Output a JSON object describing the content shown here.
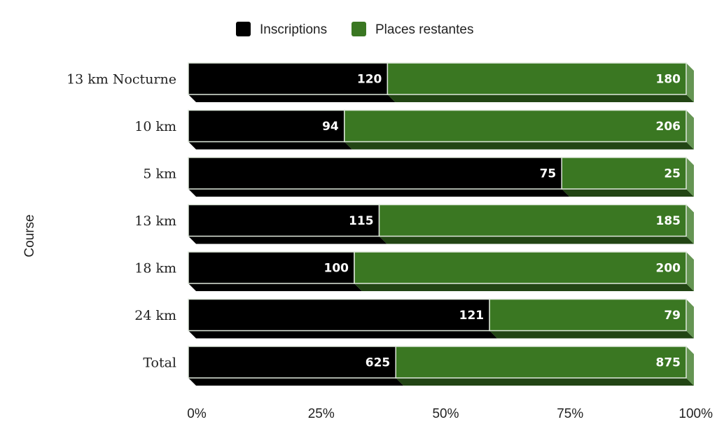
{
  "chart_data": {
    "type": "bar",
    "orientation": "horizontal",
    "stacked": "percent",
    "ylabel": "Course",
    "categories": [
      "13 km Nocturne",
      "10 km",
      "5 km",
      "13 km",
      "18 km",
      "24 km",
      "Total"
    ],
    "series": [
      {
        "name": "Inscriptions",
        "color": "#000000",
        "values": [
          120,
          94,
          75,
          115,
          100,
          121,
          625
        ]
      },
      {
        "name": "Places restantes",
        "color": "#3a7722",
        "values": [
          180,
          206,
          25,
          185,
          200,
          79,
          875
        ]
      }
    ],
    "xticks": [
      "0%",
      "25%",
      "50%",
      "75%",
      "100%"
    ],
    "xlim": [
      0,
      100
    ],
    "legend": "top-center",
    "grid": false
  }
}
